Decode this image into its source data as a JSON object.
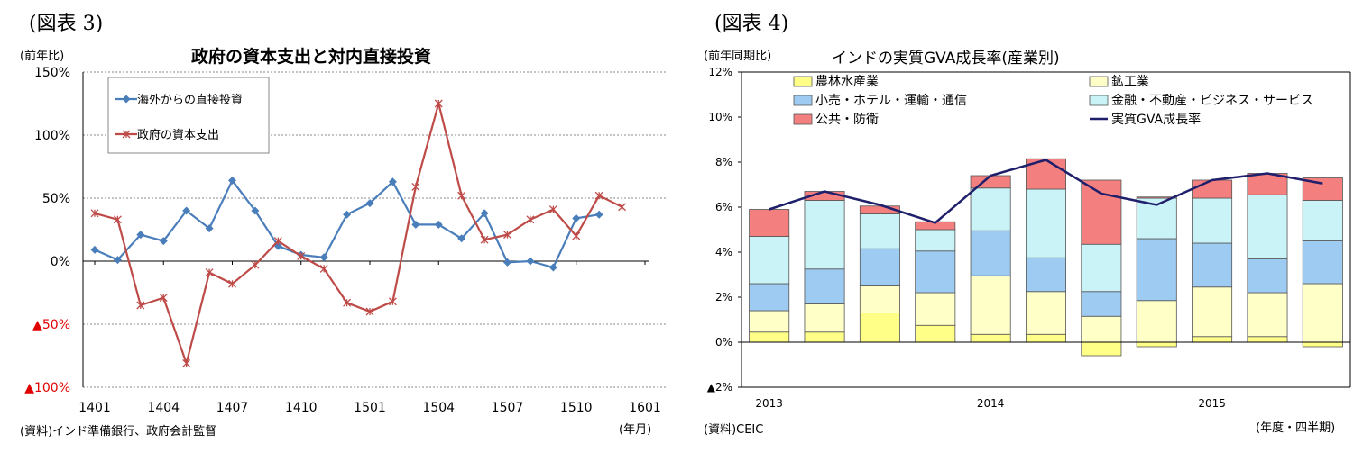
{
  "left_panel": {
    "label": "(図表 3)",
    "unit": "(前年比)",
    "source": "(資料)インド準備銀行、政府会計監督",
    "x_unit": "(年月)"
  },
  "right_panel": {
    "label": "(図表 4)",
    "unit": "(前年同期比)",
    "source": "(資料)CEIC",
    "x_unit": "(年度・四半期)"
  },
  "chart_data": [
    {
      "type": "line",
      "title": "政府の資本支出と対内直接投資",
      "x": [
        "1401",
        "1402",
        "1403",
        "1404",
        "1405",
        "1406",
        "1407",
        "1408",
        "1409",
        "1410",
        "1411",
        "1412",
        "1501",
        "1502",
        "1503",
        "1504",
        "1505",
        "1506",
        "1507",
        "1508",
        "1509",
        "1510",
        "1511",
        "1512",
        "1601"
      ],
      "x_tick_labels": [
        "1401",
        "1404",
        "1407",
        "1410",
        "1501",
        "1504",
        "1507",
        "1510",
        "1601"
      ],
      "y_ticks": [
        150,
        100,
        50,
        0,
        -50,
        -100
      ],
      "y_tick_labels": [
        "150%",
        "100%",
        "50%",
        "0%",
        "▲50%",
        "▲100%"
      ],
      "ylim": [
        -100,
        150
      ],
      "grid": true,
      "legend_position": "top-left",
      "series": [
        {
          "name": "海外からの直接投資",
          "color": "#4a7ebb",
          "marker": "diamond",
          "values": [
            9,
            1,
            21,
            16,
            40,
            26,
            64,
            40,
            12,
            5,
            3,
            37,
            46,
            63,
            29,
            29,
            18,
            38,
            -1,
            0,
            -5,
            34,
            37,
            null,
            null
          ]
        },
        {
          "name": "政府の資本支出",
          "color": "#be4b48",
          "marker": "star",
          "values": [
            38,
            33,
            -35,
            -29,
            -81,
            -9,
            -18,
            -3,
            16,
            4,
            -6,
            -33,
            -40,
            -32,
            59,
            125,
            52,
            17,
            21,
            33,
            41,
            20,
            52,
            43,
            null
          ]
        }
      ]
    },
    {
      "type": "bar",
      "stacked": true,
      "title": "インドの実質GVA成長率(産業別)",
      "categories": [
        "2013Q1",
        "2013Q2",
        "2013Q3",
        "2013Q4",
        "2014Q1",
        "2014Q2",
        "2014Q3",
        "2014Q4",
        "2015Q1",
        "2015Q2",
        "2015Q3"
      ],
      "x_tick_labels": [
        {
          "label": "2013",
          "at": 0
        },
        {
          "label": "2014",
          "at": 4
        },
        {
          "label": "2015",
          "at": 8
        }
      ],
      "y_ticks": [
        12,
        10,
        8,
        6,
        4,
        2,
        0,
        -2
      ],
      "y_tick_labels": [
        "12%",
        "10%",
        "8%",
        "6%",
        "4%",
        "2%",
        "0%",
        "▲2%"
      ],
      "ylim": [
        -2,
        12
      ],
      "legend_position": "top",
      "series": [
        {
          "name": "農林水産業",
          "color": "#ffff88",
          "values": [
            0.45,
            0.45,
            1.3,
            0.75,
            0.35,
            0.35,
            -0.6,
            -0.2,
            0.25,
            0.25,
            -0.2
          ]
        },
        {
          "name": "鉱工業",
          "color": "#ffffc8",
          "values": [
            0.95,
            1.25,
            1.2,
            1.45,
            2.6,
            1.9,
            1.15,
            1.85,
            2.2,
            1.95,
            2.6
          ]
        },
        {
          "name": "小売・ホテル・運輸・通信",
          "color": "#9ecbf2",
          "values": [
            1.2,
            1.55,
            1.65,
            1.85,
            2.0,
            1.5,
            1.1,
            2.75,
            1.95,
            1.5,
            1.9
          ]
        },
        {
          "name": "金融・不動産・ビジネス・サービス",
          "color": "#c9f3f7",
          "values": [
            2.1,
            3.05,
            1.55,
            0.95,
            1.9,
            3.05,
            2.1,
            1.8,
            2.0,
            2.85,
            1.8
          ]
        },
        {
          "name": "公共・防衛",
          "color": "#f37f7f",
          "values": [
            1.2,
            0.4,
            0.35,
            0.35,
            0.55,
            1.35,
            2.85,
            0.05,
            0.8,
            0.95,
            1.0
          ]
        }
      ],
      "line_series": {
        "name": "実質GVA成長率",
        "color": "#1f1f6b",
        "values": [
          5.9,
          6.7,
          6.1,
          5.3,
          7.4,
          8.1,
          6.6,
          6.1,
          7.2,
          7.5,
          7.05
        ]
      }
    }
  ]
}
